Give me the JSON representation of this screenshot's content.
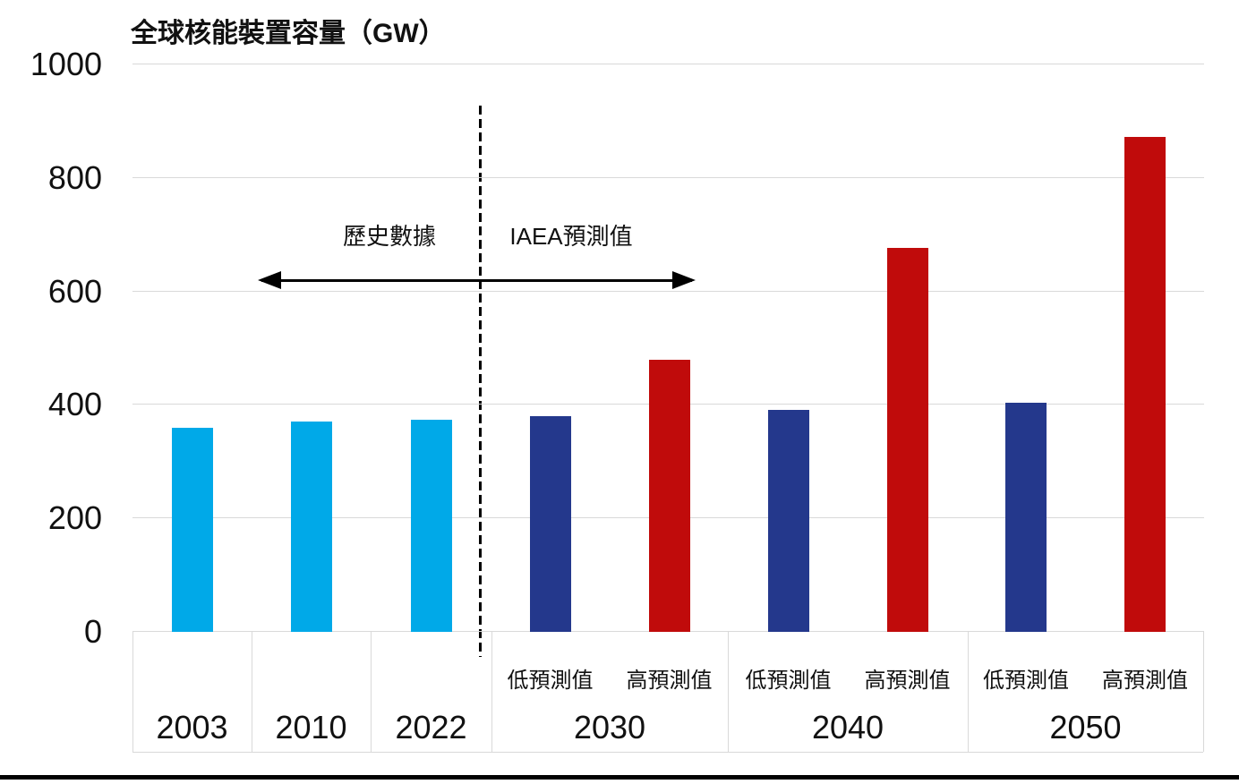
{
  "chart_data": {
    "type": "bar",
    "title": "全球核能裝置容量（GW）",
    "xlabel": "",
    "ylabel": "GW",
    "ylim": [
      0,
      1000
    ],
    "yticks": [
      0,
      200,
      400,
      600,
      800,
      1000
    ],
    "grid": true,
    "legend_position": "none",
    "annotations": {
      "historical": "歷史數據",
      "forecast": "IAEA預測值"
    },
    "series_labels": {
      "low": "低預測值",
      "high": "高預測值"
    },
    "colors": {
      "historical": "#00A9E8",
      "low": "#24388C",
      "high": "#C00B0B",
      "grid": "#D9D9D9",
      "divider": "#000000",
      "text": "#111111"
    },
    "groups": [
      {
        "year": "2003",
        "bars": [
          {
            "series": "historical",
            "value": 360
          }
        ]
      },
      {
        "year": "2010",
        "bars": [
          {
            "series": "historical",
            "value": 371
          }
        ]
      },
      {
        "year": "2022",
        "bars": [
          {
            "series": "historical",
            "value": 374
          }
        ]
      },
      {
        "year": "2030",
        "bars": [
          {
            "series": "low",
            "value": 380
          },
          {
            "series": "high",
            "value": 479
          }
        ]
      },
      {
        "year": "2040",
        "bars": [
          {
            "series": "low",
            "value": 391
          },
          {
            "series": "high",
            "value": 677
          }
        ]
      },
      {
        "year": "2050",
        "bars": [
          {
            "series": "low",
            "value": 404
          },
          {
            "series": "high",
            "value": 873
          }
        ]
      }
    ]
  }
}
